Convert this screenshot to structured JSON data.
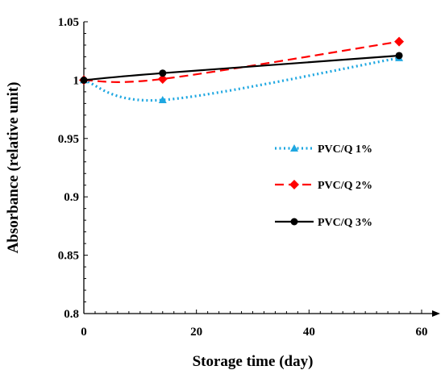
{
  "chart_data": {
    "type": "line",
    "title": "",
    "xlabel": "Storage time (day)",
    "ylabel": "Absorbance (relative unit)",
    "xlim": [
      0,
      60
    ],
    "ylim": [
      0.8,
      1.05
    ],
    "x_ticks": [
      0,
      20,
      40,
      60
    ],
    "y_ticks": [
      0.8,
      0.85,
      0.9,
      0.95,
      1,
      1.05
    ],
    "x_tick_labels": [
      "0",
      "20",
      "40",
      "60"
    ],
    "y_tick_labels": [
      "0.8",
      "0.85",
      "0.9",
      "0.95",
      "1",
      "1.05"
    ],
    "grid": false,
    "legend_position": "right",
    "series": [
      {
        "name": "PVC/Q 1%",
        "x": [
          0,
          14,
          56
        ],
        "y": [
          1.0,
          0.983,
          1.019
        ],
        "color": "#1ea7e1",
        "line_style": "dotted",
        "marker": "triangle"
      },
      {
        "name": "PVC/Q 2%",
        "x": [
          0,
          14,
          56
        ],
        "y": [
          1.0,
          1.001,
          1.033
        ],
        "color": "#ff0000",
        "line_style": "dashed",
        "marker": "diamond"
      },
      {
        "name": "PVC/Q 3%",
        "x": [
          0,
          14,
          56
        ],
        "y": [
          1.0,
          1.006,
          1.021
        ],
        "color": "#000000",
        "line_style": "solid",
        "marker": "circle"
      }
    ]
  }
}
